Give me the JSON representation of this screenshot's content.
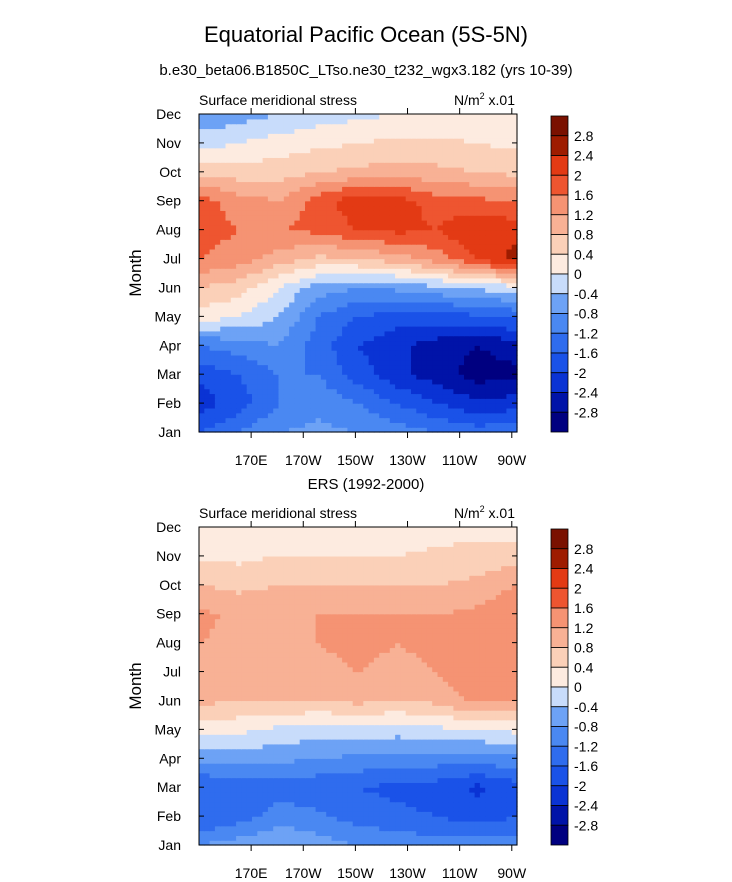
{
  "title": "Equatorial Pacific Ocean (5S-5N)",
  "subtitle": "b.e30_beta06.B1850C_LTso.ne30_t232_wgx3.182 (yrs 10-39)",
  "colors": [
    "#000080",
    "#0013a8",
    "#0a33d4",
    "#1a52e8",
    "#2f6cee",
    "#4a88f2",
    "#6da2f5",
    "#9bbff8",
    "#c8dcfb",
    "#e6efff",
    "#fdebe0",
    "#fbd0b8",
    "#f8b195",
    "#f59373",
    "#f27351",
    "#ee5530",
    "#e33a14",
    "#c92b06",
    "#9e1c00",
    "#7a1100"
  ],
  "levels": [
    -2.8,
    -2.4,
    -2,
    -1.6,
    -1.2,
    -0.8,
    -0.4,
    0,
    0.4,
    0.8,
    1.2,
    1.6,
    2,
    2.4,
    2.8
  ],
  "panels": [
    {
      "heading": "",
      "left_label": "Surface meridional stress",
      "units_label": "N/m",
      "units_exp": "2",
      "units_scale": " x.01",
      "chart_data": {
        "type": "heatmap",
        "variable": "Surface meridional stress",
        "units": "N/m^2 x.01",
        "xlabel": "",
        "ylabel": "Month",
        "x": [
          155,
          170,
          185,
          200,
          215,
          230,
          245,
          260,
          270
        ],
        "x_ticks": [
          "170E",
          "170W",
          "150W",
          "130W",
          "110W",
          "90W"
        ],
        "y": [
          "Jan",
          "Feb",
          "Mar",
          "Apr",
          "May",
          "Jun",
          "Jul",
          "Aug",
          "Sep",
          "Oct",
          "Nov",
          "Dec"
        ],
        "z": [
          [
            -1.6,
            -1.2,
            -0.8,
            -0.7,
            -0.8,
            -1.0,
            -1.2,
            -1.4,
            -1.3
          ],
          [
            -2.2,
            -1.8,
            -1.2,
            -0.9,
            -1.2,
            -1.6,
            -2.0,
            -2.3,
            -2.2
          ],
          [
            -1.9,
            -1.6,
            -1.2,
            -1.2,
            -1.8,
            -2.3,
            -2.6,
            -3.0,
            -2.9
          ],
          [
            -1.2,
            -1.0,
            -0.8,
            -1.4,
            -2.0,
            -2.3,
            -2.6,
            -2.8,
            -2.6
          ],
          [
            0.2,
            0.0,
            -0.4,
            -1.2,
            -1.6,
            -1.8,
            -1.8,
            -1.7,
            -1.5
          ],
          [
            0.8,
            0.6,
            0.0,
            -0.6,
            -0.8,
            -0.7,
            -0.5,
            -0.3,
            -0.2
          ],
          [
            1.6,
            1.4,
            1.0,
            0.7,
            0.8,
            1.0,
            1.4,
            2.0,
            2.6
          ],
          [
            1.8,
            1.6,
            1.6,
            1.7,
            2.0,
            2.1,
            2.0,
            2.4,
            2.2
          ],
          [
            1.8,
            1.4,
            1.2,
            1.8,
            2.3,
            2.2,
            1.8,
            1.7,
            1.6
          ],
          [
            0.7,
            0.6,
            0.6,
            0.8,
            0.9,
            1.0,
            0.9,
            0.8,
            0.7
          ],
          [
            -0.2,
            0.0,
            0.2,
            0.3,
            0.4,
            0.5,
            0.5,
            0.4,
            0.3
          ],
          [
            -0.7,
            -0.6,
            -0.4,
            -0.2,
            -0.1,
            0.0,
            0.1,
            0.1,
            0.0
          ]
        ],
        "ylim": [
          "Jan",
          "Dec"
        ],
        "colorbar": "right"
      }
    },
    {
      "heading": "ERS (1992-2000)",
      "left_label": "Surface meridional stress",
      "units_label": "N/m",
      "units_exp": "2",
      "units_scale": " x.01",
      "chart_data": {
        "type": "heatmap",
        "variable": "Surface meridional stress",
        "units": "N/m^2 x.01",
        "xlabel": "",
        "ylabel": "Month",
        "x": [
          155,
          170,
          185,
          200,
          215,
          230,
          245,
          260,
          270
        ],
        "x_ticks": [
          "170E",
          "170W",
          "150W",
          "130W",
          "110W",
          "90W"
        ],
        "y": [
          "Jan",
          "Feb",
          "Mar",
          "Apr",
          "May",
          "Jun",
          "Jul",
          "Aug",
          "Sep",
          "Oct",
          "Nov",
          "Dec"
        ],
        "z": [
          [
            -0.8,
            -0.6,
            -0.4,
            -0.6,
            -0.8,
            -0.9,
            -1.0,
            -1.0,
            -0.9
          ],
          [
            -1.6,
            -1.4,
            -1.0,
            -1.1,
            -1.4,
            -1.5,
            -1.6,
            -1.8,
            -1.6
          ],
          [
            -1.6,
            -1.5,
            -1.4,
            -1.5,
            -1.6,
            -1.7,
            -1.8,
            -2.1,
            -1.8
          ],
          [
            -0.7,
            -0.6,
            -0.7,
            -0.8,
            -0.9,
            -1.0,
            -1.0,
            -1.0,
            -0.9
          ],
          [
            0.2,
            0.1,
            -0.1,
            -0.2,
            -0.2,
            -0.2,
            -0.1,
            0.0,
            0.1
          ],
          [
            0.9,
            0.8,
            0.8,
            0.8,
            0.9,
            0.8,
            0.9,
            1.3,
            1.2
          ],
          [
            1.0,
            1.0,
            1.1,
            1.1,
            1.2,
            1.1,
            1.2,
            1.6,
            1.4
          ],
          [
            1.2,
            1.1,
            1.2,
            1.2,
            1.3,
            1.2,
            1.3,
            1.5,
            1.3
          ],
          [
            1.3,
            1.1,
            1.1,
            1.2,
            1.2,
            1.2,
            1.2,
            1.3,
            1.6
          ],
          [
            0.8,
            0.7,
            0.8,
            0.8,
            0.8,
            0.8,
            0.8,
            0.9,
            1.2
          ],
          [
            0.3,
            0.3,
            0.4,
            0.4,
            0.4,
            0.4,
            0.5,
            0.6,
            0.6
          ],
          [
            0.0,
            0.1,
            0.1,
            0.1,
            0.2,
            0.2,
            0.2,
            0.2,
            0.2
          ]
        ],
        "ylim": [
          "Jan",
          "Dec"
        ],
        "colorbar": "right"
      }
    }
  ]
}
